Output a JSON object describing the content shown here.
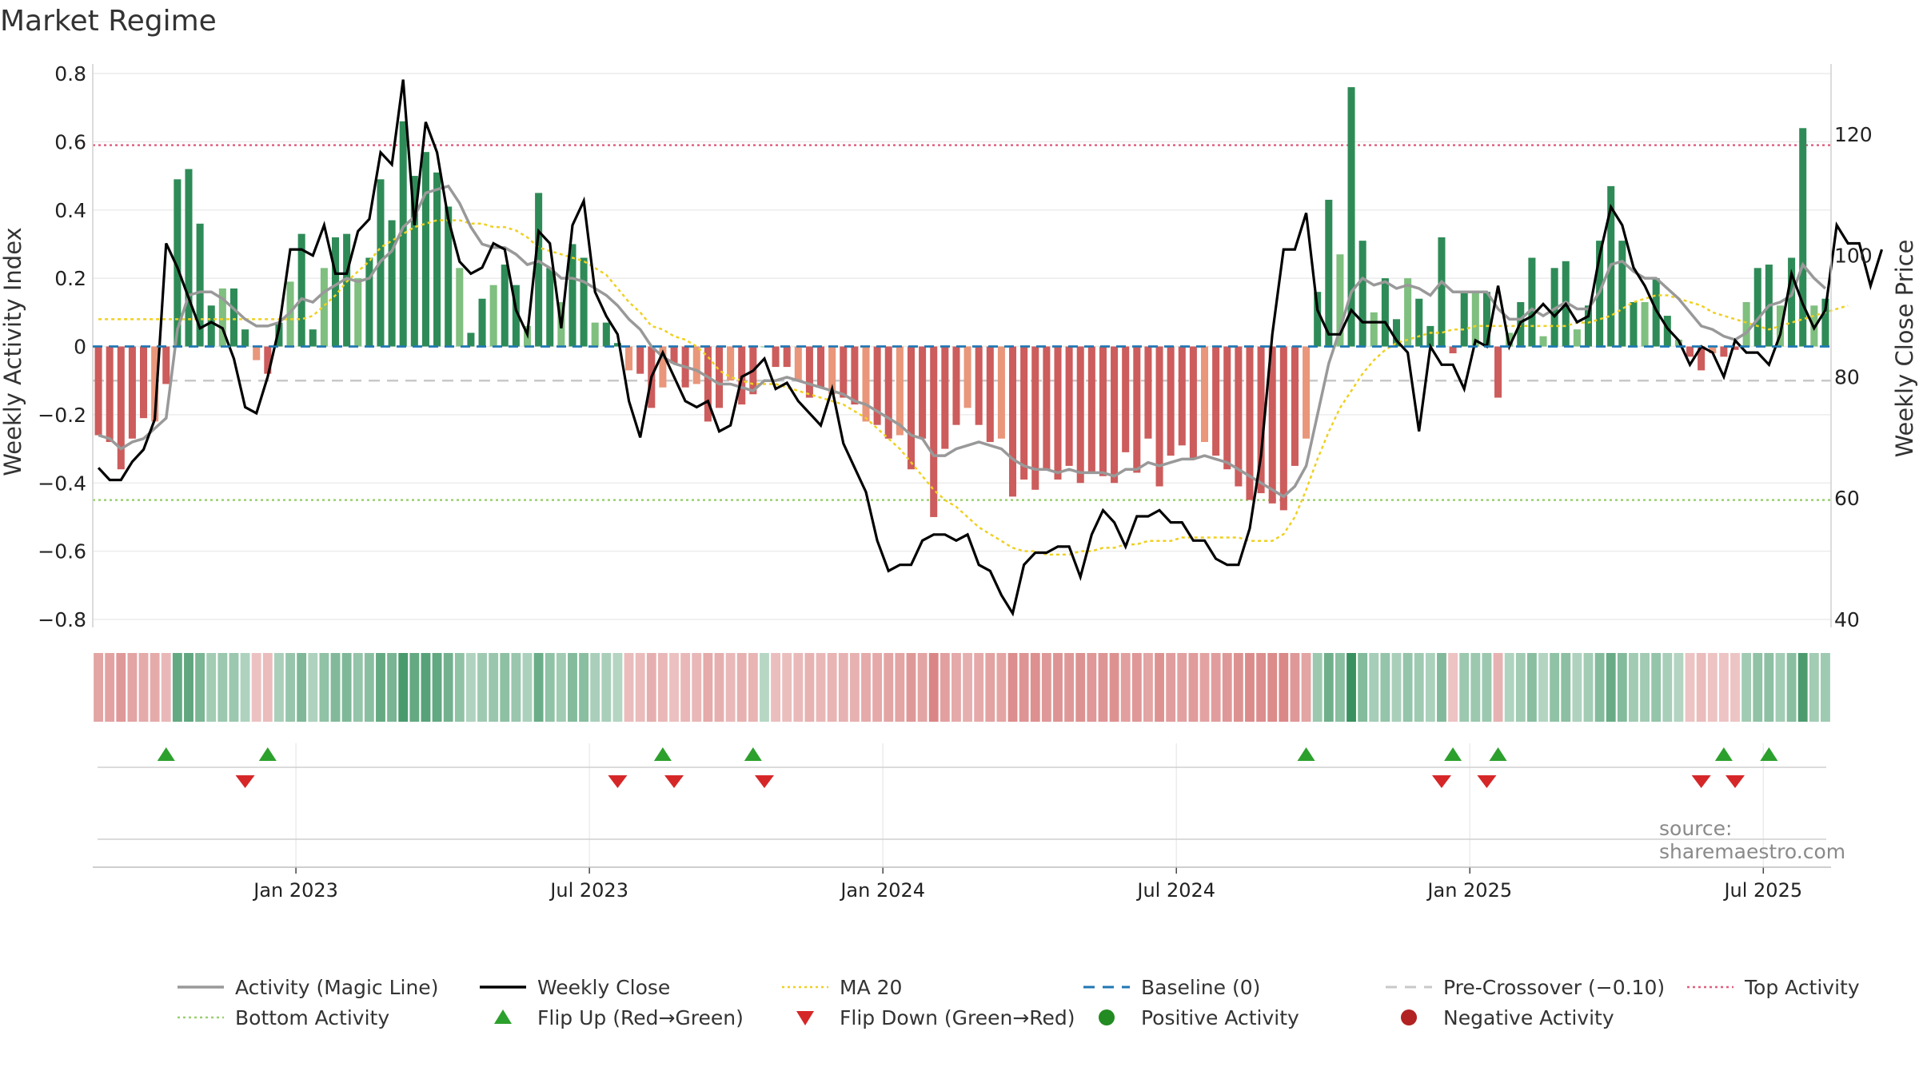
{
  "title": "Market Regime",
  "source": "source: sharemaestro.com",
  "chart_data": {
    "type": "bar",
    "title": "Market Regime",
    "ylabel_left": "Weekly Activity Index",
    "ylabel_right": "Weekly Close Price",
    "ylim_left": [
      -0.8,
      0.8
    ],
    "ylim_right": [
      40,
      130
    ],
    "left_ticks": [
      "−0.8",
      "−0.6",
      "−0.4",
      "−0.2",
      "0",
      "0.2",
      "0.4",
      "0.6",
      "0.8"
    ],
    "right_ticks": [
      "40",
      "60",
      "80",
      "100",
      "120"
    ],
    "x_ticks": [
      "Jan 2023",
      "Jul 2023",
      "Jan 2024",
      "Jul 2024",
      "Jan 2025",
      "Jul 2025"
    ],
    "x_tick_weeks": [
      18,
      44,
      70,
      96,
      122,
      148
    ],
    "reference_lines": {
      "top_activity": 0.59,
      "bottom_activity": -0.45,
      "baseline": 0,
      "pre_crossover": -0.1
    },
    "grid": true,
    "legend_position": "bottom",
    "colors": {
      "pos_strong": "#2e8b57",
      "pos_light": "#7fbf7f",
      "neg_strong": "#cd5c5c",
      "neg_light": "#e9967a",
      "close": "#000000",
      "magic": "#999999",
      "ma20": "#f0d020",
      "baseline": "#1f77b4",
      "pre": "#c8c8c8",
      "top": "#e06080",
      "bottom": "#9ad070",
      "flip_up": "#2ca02c",
      "flip_down": "#d62728",
      "pos_dot": "#228b22",
      "neg_dot": "#b22222"
    },
    "activity": [
      -0.26,
      -0.28,
      -0.36,
      -0.27,
      -0.21,
      -0.22,
      -0.11,
      0.49,
      0.52,
      0.36,
      0.12,
      0.17,
      0.17,
      0.05,
      -0.04,
      -0.08,
      0.07,
      0.19,
      0.33,
      0.05,
      0.23,
      0.32,
      0.33,
      0.2,
      0.26,
      0.49,
      0.37,
      0.66,
      0.5,
      0.57,
      0.51,
      0.41,
      0.23,
      0.04,
      0.14,
      0.18,
      0.24,
      0.18,
      0.06,
      0.45,
      0.23,
      0.13,
      0.3,
      0.26,
      0.07,
      0.07,
      0.01,
      -0.07,
      -0.08,
      -0.18,
      -0.12,
      -0.05,
      -0.12,
      -0.11,
      -0.22,
      -0.18,
      -0.1,
      -0.17,
      -0.14,
      0.0,
      -0.06,
      -0.06,
      -0.1,
      -0.15,
      -0.12,
      -0.14,
      -0.15,
      -0.17,
      -0.22,
      -0.23,
      -0.27,
      -0.26,
      -0.36,
      -0.27,
      -0.5,
      -0.3,
      -0.23,
      -0.18,
      -0.23,
      -0.28,
      -0.27,
      -0.44,
      -0.39,
      -0.42,
      -0.36,
      -0.39,
      -0.35,
      -0.4,
      -0.37,
      -0.38,
      -0.4,
      -0.31,
      -0.37,
      -0.27,
      -0.41,
      -0.32,
      -0.29,
      -0.33,
      -0.28,
      -0.32,
      -0.36,
      -0.41,
      -0.45,
      -0.43,
      -0.46,
      -0.48,
      -0.35,
      -0.27,
      0.16,
      0.43,
      0.27,
      0.76,
      0.31,
      0.1,
      0.2,
      0.08,
      0.2,
      0.14,
      0.06,
      0.32,
      -0.02,
      0.16,
      0.16,
      0.16,
      -0.15,
      0.04,
      0.13,
      0.26,
      0.03,
      0.23,
      0.25,
      0.05,
      0.12,
      0.31,
      0.47,
      0.31,
      0.13,
      0.13,
      0.2,
      0.09,
      0.02,
      -0.03,
      -0.07,
      -0.02,
      -0.03,
      -0.01,
      0.13,
      0.23,
      0.24,
      0.12,
      0.26,
      0.64,
      0.12,
      0.14
    ],
    "weekly_close": [
      65,
      63,
      63,
      66,
      68,
      73,
      102,
      98,
      93,
      88,
      89,
      88,
      83,
      75,
      74,
      80,
      88,
      101,
      101,
      100,
      105,
      97,
      97,
      104,
      106,
      117,
      115,
      129,
      105,
      122,
      117,
      106,
      99,
      97,
      98,
      102,
      101,
      91,
      87,
      104,
      102,
      88,
      105,
      109,
      94,
      90,
      87,
      76,
      70,
      80,
      84,
      80,
      76,
      75,
      76,
      71,
      72,
      80,
      81,
      83,
      78,
      79,
      76,
      74,
      72,
      78,
      69,
      65,
      61,
      53,
      48,
      49,
      49,
      53,
      54,
      54,
      53,
      54,
      49,
      48,
      44,
      41,
      49,
      51,
      51,
      52,
      52,
      47,
      54,
      58,
      56,
      52,
      57,
      57,
      58,
      56,
      56,
      53,
      53,
      50,
      49,
      49,
      55,
      67,
      87,
      101,
      101,
      107,
      91,
      87,
      87,
      91,
      89,
      89,
      89,
      86,
      84,
      71,
      85,
      82,
      82,
      78,
      86,
      85,
      95,
      85,
      89,
      90,
      92,
      90,
      92,
      89,
      90,
      100,
      108,
      105,
      98,
      95,
      91,
      88,
      86,
      82,
      85,
      84,
      80,
      86,
      84,
      84,
      82,
      87,
      97,
      92,
      88,
      91,
      105,
      102,
      102,
      95,
      101
    ],
    "magic_line": [
      -0.26,
      -0.27,
      -0.3,
      -0.28,
      -0.27,
      -0.24,
      -0.21,
      0.05,
      0.15,
      0.16,
      0.16,
      0.14,
      0.11,
      0.08,
      0.06,
      0.06,
      0.07,
      0.1,
      0.14,
      0.13,
      0.16,
      0.18,
      0.2,
      0.19,
      0.2,
      0.25,
      0.28,
      0.35,
      0.38,
      0.45,
      0.46,
      0.47,
      0.42,
      0.35,
      0.3,
      0.29,
      0.29,
      0.27,
      0.24,
      0.25,
      0.23,
      0.2,
      0.2,
      0.19,
      0.17,
      0.15,
      0.12,
      0.08,
      0.05,
      0.0,
      -0.03,
      -0.05,
      -0.06,
      -0.07,
      -0.09,
      -0.11,
      -0.11,
      -0.12,
      -0.13,
      -0.1,
      -0.1,
      -0.09,
      -0.1,
      -0.11,
      -0.12,
      -0.13,
      -0.14,
      -0.16,
      -0.17,
      -0.19,
      -0.21,
      -0.23,
      -0.26,
      -0.27,
      -0.32,
      -0.32,
      -0.3,
      -0.29,
      -0.28,
      -0.29,
      -0.3,
      -0.33,
      -0.35,
      -0.36,
      -0.36,
      -0.37,
      -0.36,
      -0.37,
      -0.37,
      -0.37,
      -0.38,
      -0.36,
      -0.36,
      -0.34,
      -0.35,
      -0.34,
      -0.33,
      -0.33,
      -0.32,
      -0.33,
      -0.34,
      -0.36,
      -0.38,
      -0.4,
      -0.42,
      -0.44,
      -0.41,
      -0.35,
      -0.2,
      -0.05,
      0.05,
      0.16,
      0.2,
      0.18,
      0.19,
      0.17,
      0.18,
      0.17,
      0.15,
      0.19,
      0.16,
      0.16,
      0.16,
      0.16,
      0.11,
      0.08,
      0.08,
      0.11,
      0.09,
      0.11,
      0.13,
      0.11,
      0.11,
      0.16,
      0.24,
      0.25,
      0.22,
      0.2,
      0.2,
      0.17,
      0.14,
      0.1,
      0.06,
      0.05,
      0.03,
      0.02,
      0.04,
      0.08,
      0.12,
      0.13,
      0.15,
      0.24,
      0.2,
      0.17
    ],
    "ma20": [
      0.08,
      0.08,
      0.08,
      0.08,
      0.08,
      0.08,
      0.08,
      0.08,
      0.08,
      0.08,
      0.08,
      0.08,
      0.08,
      0.08,
      0.08,
      0.08,
      0.08,
      0.08,
      0.08,
      0.09,
      0.12,
      0.15,
      0.19,
      0.22,
      0.25,
      0.29,
      0.31,
      0.33,
      0.35,
      0.36,
      0.37,
      0.37,
      0.37,
      0.36,
      0.36,
      0.35,
      0.35,
      0.34,
      0.32,
      0.29,
      0.28,
      0.27,
      0.26,
      0.25,
      0.23,
      0.21,
      0.17,
      0.13,
      0.1,
      0.06,
      0.05,
      0.03,
      0.02,
      0.0,
      -0.03,
      -0.07,
      -0.09,
      -0.1,
      -0.11,
      -0.11,
      -0.11,
      -0.12,
      -0.13,
      -0.14,
      -0.15,
      -0.16,
      -0.17,
      -0.19,
      -0.21,
      -0.24,
      -0.27,
      -0.3,
      -0.34,
      -0.38,
      -0.42,
      -0.45,
      -0.47,
      -0.5,
      -0.53,
      -0.55,
      -0.57,
      -0.59,
      -0.6,
      -0.6,
      -0.61,
      -0.61,
      -0.61,
      -0.6,
      -0.6,
      -0.59,
      -0.59,
      -0.58,
      -0.58,
      -0.57,
      -0.57,
      -0.57,
      -0.56,
      -0.56,
      -0.56,
      -0.56,
      -0.56,
      -0.56,
      -0.57,
      -0.57,
      -0.57,
      -0.55,
      -0.5,
      -0.42,
      -0.33,
      -0.25,
      -0.18,
      -0.13,
      -0.08,
      -0.04,
      -0.01,
      0.01,
      0.02,
      0.03,
      0.04,
      0.04,
      0.05,
      0.05,
      0.06,
      0.06,
      0.06,
      0.06,
      0.06,
      0.06,
      0.06,
      0.06,
      0.06,
      0.07,
      0.07,
      0.08,
      0.09,
      0.11,
      0.13,
      0.14,
      0.15,
      0.15,
      0.14,
      0.13,
      0.12,
      0.1,
      0.09,
      0.08,
      0.07,
      0.06,
      0.05,
      0.06,
      0.07,
      0.08,
      0.09,
      0.1,
      0.11,
      0.12
    ],
    "flip_up_weeks": [
      6,
      15,
      50,
      58,
      107,
      120,
      124,
      144,
      148
    ],
    "flip_down_weeks": [
      13,
      46,
      51,
      59,
      119,
      123,
      142,
      145
    ],
    "legend": [
      {
        "label": "Activity (Magic Line)",
        "kind": "line",
        "color": "#999999"
      },
      {
        "label": "Weekly Close",
        "kind": "line",
        "color": "#000000"
      },
      {
        "label": "MA 20",
        "kind": "dot-line",
        "color": "#f0d020"
      },
      {
        "label": "Baseline (0)",
        "kind": "dash-line",
        "color": "#1f77b4"
      },
      {
        "label": "Pre-Crossover (−0.10)",
        "kind": "dash-line",
        "color": "#c8c8c8"
      },
      {
        "label": "Top Activity",
        "kind": "dot-line",
        "color": "#e06080"
      },
      {
        "label": "Bottom Activity",
        "kind": "dot-line",
        "color": "#9ad070"
      },
      {
        "label": "Flip Up (Red→Green)",
        "kind": "tri-up",
        "color": "#2ca02c"
      },
      {
        "label": "Flip Down (Green→Red)",
        "kind": "tri-down",
        "color": "#d62728"
      },
      {
        "label": "Positive Activity",
        "kind": "circle",
        "color": "#228b22"
      },
      {
        "label": "Negative Activity",
        "kind": "circle",
        "color": "#b22222"
      }
    ]
  }
}
